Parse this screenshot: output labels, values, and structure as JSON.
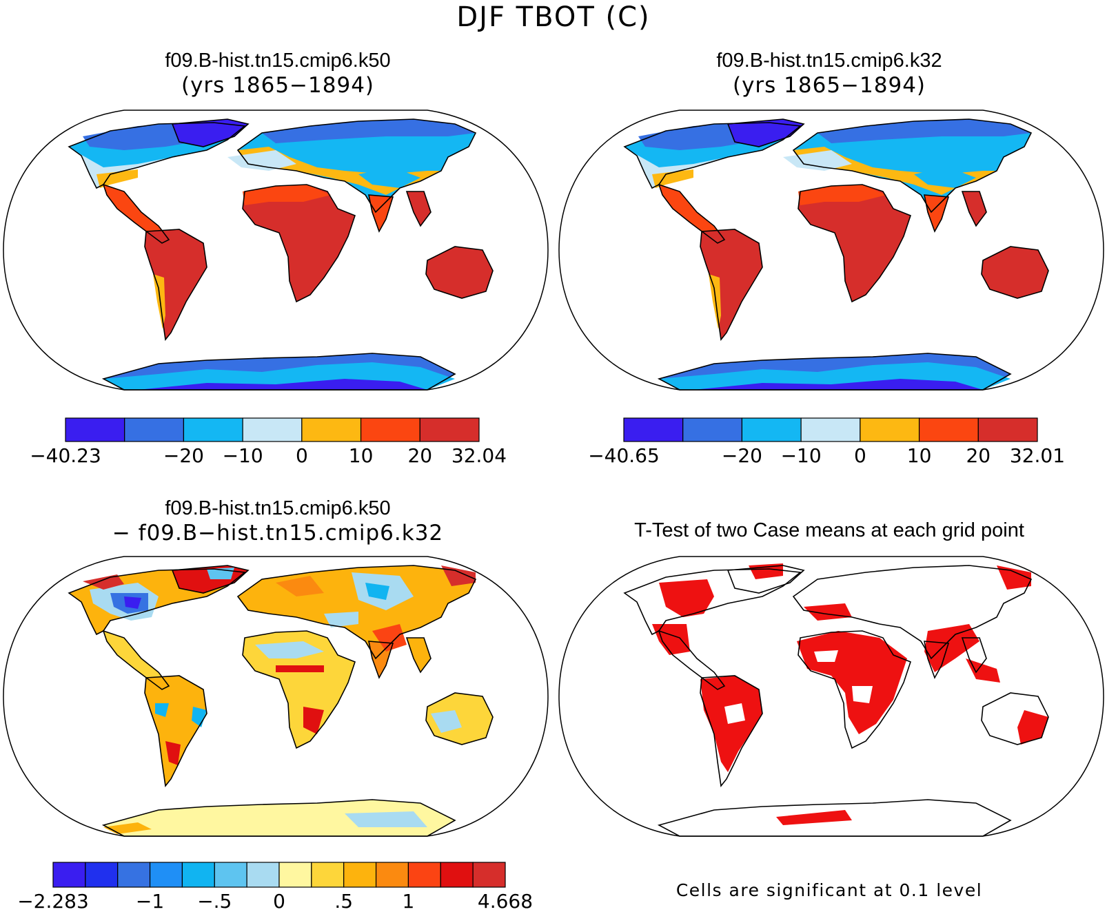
{
  "title": "DJF TBOT (C)",
  "colors": {
    "ocean": "#ffffff",
    "coast": "#000000",
    "significant": "#ee1111"
  },
  "panels": [
    {
      "id": "case1",
      "title_line1": "f09.B-hist.tn15.cmip6.k50",
      "title_line2": "(yrs 1865−1894)",
      "colorbar": {
        "colors": [
          "#3a1ef0",
          "#3670e3",
          "#14b7f3",
          "#c8e7f6",
          "#fdb812",
          "#fb4611",
          "#d62e2b"
        ],
        "labels": [
          "−40.23",
          "",
          "−20",
          "−10",
          "0",
          "10",
          "20",
          "32.04"
        ]
      }
    },
    {
      "id": "case2",
      "title_line1": "f09.B-hist.tn15.cmip6.k32",
      "title_line2": "(yrs 1865−1894)",
      "colorbar": {
        "colors": [
          "#3a1ef0",
          "#3670e3",
          "#14b7f3",
          "#c8e7f6",
          "#fdb812",
          "#fb4611",
          "#d62e2b"
        ],
        "labels": [
          "−40.65",
          "",
          "−20",
          "−10",
          "0",
          "10",
          "20",
          "32.01"
        ]
      }
    },
    {
      "id": "diff",
      "title_line1": "f09.B-hist.tn15.cmip6.k50",
      "title_line2": "− f09.B−hist.tn15.cmip6.k32",
      "colorbar": {
        "colors": [
          "#3a1ef0",
          "#2030ee",
          "#3672e2",
          "#1f8ff6",
          "#11b4f1",
          "#5ec4f0",
          "#a9dbf1",
          "#fff7a0",
          "#fdd63a",
          "#fdb30d",
          "#fb8a10",
          "#fb4413",
          "#e01010",
          "#d62e2b"
        ],
        "labels": [
          "−2.283",
          "",
          "",
          "−1",
          "",
          "−.5",
          "",
          "0",
          "",
          ".5",
          "",
          "1",
          "",
          "",
          "4.668"
        ]
      }
    },
    {
      "id": "ttest",
      "title_line1": "T-Test of two Case means at each grid point",
      "note": "Cells are significant at 0.1 level"
    }
  ]
}
